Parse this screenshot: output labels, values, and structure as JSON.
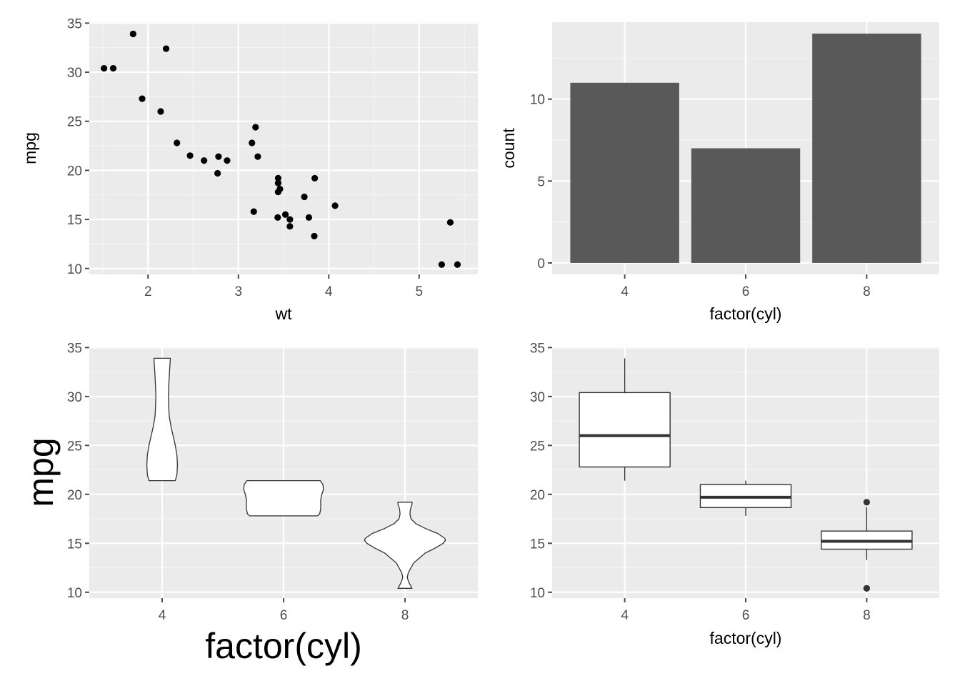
{
  "theme": {
    "panel_background": "#ebebeb",
    "grid_major": "#ffffff",
    "grid_minor": "#f5f5f5",
    "tick_color": "#4d4d4d",
    "bar_fill": "#595959",
    "point_color": "#000000",
    "outline_color": "#333333"
  },
  "chart_data": [
    {
      "id": "scatter",
      "type": "scatter",
      "xlabel": "wt",
      "ylabel": "mpg",
      "xlim": [
        1.35,
        5.65
      ],
      "ylim": [
        9.4,
        35.1
      ],
      "xticks": [
        2,
        3,
        4,
        5
      ],
      "yticks": [
        10,
        15,
        20,
        25,
        30,
        35
      ],
      "points": [
        [
          2.62,
          21.0
        ],
        [
          2.875,
          21.0
        ],
        [
          2.32,
          22.8
        ],
        [
          3.215,
          21.4
        ],
        [
          3.44,
          18.7
        ],
        [
          3.46,
          18.1
        ],
        [
          3.57,
          14.3
        ],
        [
          3.19,
          24.4
        ],
        [
          3.15,
          22.8
        ],
        [
          3.44,
          19.2
        ],
        [
          3.44,
          17.8
        ],
        [
          4.07,
          16.4
        ],
        [
          3.73,
          17.3
        ],
        [
          3.78,
          15.2
        ],
        [
          5.25,
          10.4
        ],
        [
          5.424,
          10.4
        ],
        [
          5.345,
          14.7
        ],
        [
          2.2,
          32.4
        ],
        [
          1.615,
          30.4
        ],
        [
          1.835,
          33.9
        ],
        [
          2.465,
          21.5
        ],
        [
          3.52,
          15.5
        ],
        [
          3.435,
          15.2
        ],
        [
          3.84,
          13.3
        ],
        [
          3.845,
          19.2
        ],
        [
          1.935,
          27.3
        ],
        [
          2.14,
          26.0
        ],
        [
          1.513,
          30.4
        ],
        [
          3.17,
          15.8
        ],
        [
          2.77,
          19.7
        ],
        [
          3.57,
          15.0
        ],
        [
          2.78,
          21.4
        ]
      ]
    },
    {
      "id": "bar",
      "type": "bar",
      "xlabel": "factor(cyl)",
      "ylabel": "count",
      "categories": [
        "4",
        "6",
        "8"
      ],
      "values": [
        11,
        7,
        14
      ],
      "ylim": [
        -0.7,
        14.7
      ],
      "yticks": [
        0,
        5,
        10
      ]
    },
    {
      "id": "violin",
      "type": "violin",
      "xlabel": "factor(cyl)",
      "ylabel": "mpg",
      "categories": [
        "4",
        "6",
        "8"
      ],
      "ylim": [
        9.4,
        35.1
      ],
      "yticks": [
        10,
        15,
        20,
        25,
        30,
        35
      ],
      "profiles": [
        [
          [
            21.4,
            0.24
          ],
          [
            22.0,
            0.27
          ],
          [
            23.0,
            0.28
          ],
          [
            24.0,
            0.27
          ],
          [
            25.0,
            0.24
          ],
          [
            26.0,
            0.2
          ],
          [
            27.0,
            0.16
          ],
          [
            28.0,
            0.13
          ],
          [
            29.0,
            0.12
          ],
          [
            30.0,
            0.115
          ],
          [
            31.0,
            0.12
          ],
          [
            32.0,
            0.13
          ],
          [
            33.0,
            0.14
          ],
          [
            33.9,
            0.15
          ]
        ],
        [
          [
            17.8,
            0.62
          ],
          [
            18.0,
            0.66
          ],
          [
            18.5,
            0.68
          ],
          [
            19.0,
            0.68
          ],
          [
            19.5,
            0.68
          ],
          [
            20.0,
            0.7
          ],
          [
            20.5,
            0.73
          ],
          [
            21.0,
            0.72
          ],
          [
            21.4,
            0.67
          ]
        ],
        [
          [
            10.4,
            0.13
          ],
          [
            11.0,
            0.07
          ],
          [
            11.5,
            0.04
          ],
          [
            12.0,
            0.06
          ],
          [
            13.0,
            0.16
          ],
          [
            14.0,
            0.37
          ],
          [
            14.5,
            0.55
          ],
          [
            15.0,
            0.7
          ],
          [
            15.3,
            0.74
          ],
          [
            15.5,
            0.73
          ],
          [
            16.0,
            0.6
          ],
          [
            16.5,
            0.38
          ],
          [
            17.0,
            0.2
          ],
          [
            17.5,
            0.11
          ],
          [
            18.0,
            0.09
          ],
          [
            18.5,
            0.1
          ],
          [
            19.0,
            0.13
          ],
          [
            19.2,
            0.13
          ]
        ]
      ]
    },
    {
      "id": "box",
      "type": "box",
      "xlabel": "factor(cyl)",
      "ylabel": "",
      "categories": [
        "4",
        "6",
        "8"
      ],
      "ylim": [
        9.4,
        35.1
      ],
      "yticks": [
        10,
        15,
        20,
        25,
        30,
        35
      ],
      "boxes": [
        {
          "min": 21.4,
          "q1": 22.8,
          "median": 26.0,
          "q3": 30.4,
          "max": 33.9,
          "outliers": []
        },
        {
          "min": 17.8,
          "q1": 18.65,
          "median": 19.7,
          "q3": 21.0,
          "max": 21.4,
          "outliers": []
        },
        {
          "min": 13.3,
          "q1": 14.4,
          "median": 15.2,
          "q3": 16.25,
          "max": 18.7,
          "outliers": [
            10.4,
            10.4,
            19.2
          ]
        }
      ]
    }
  ]
}
